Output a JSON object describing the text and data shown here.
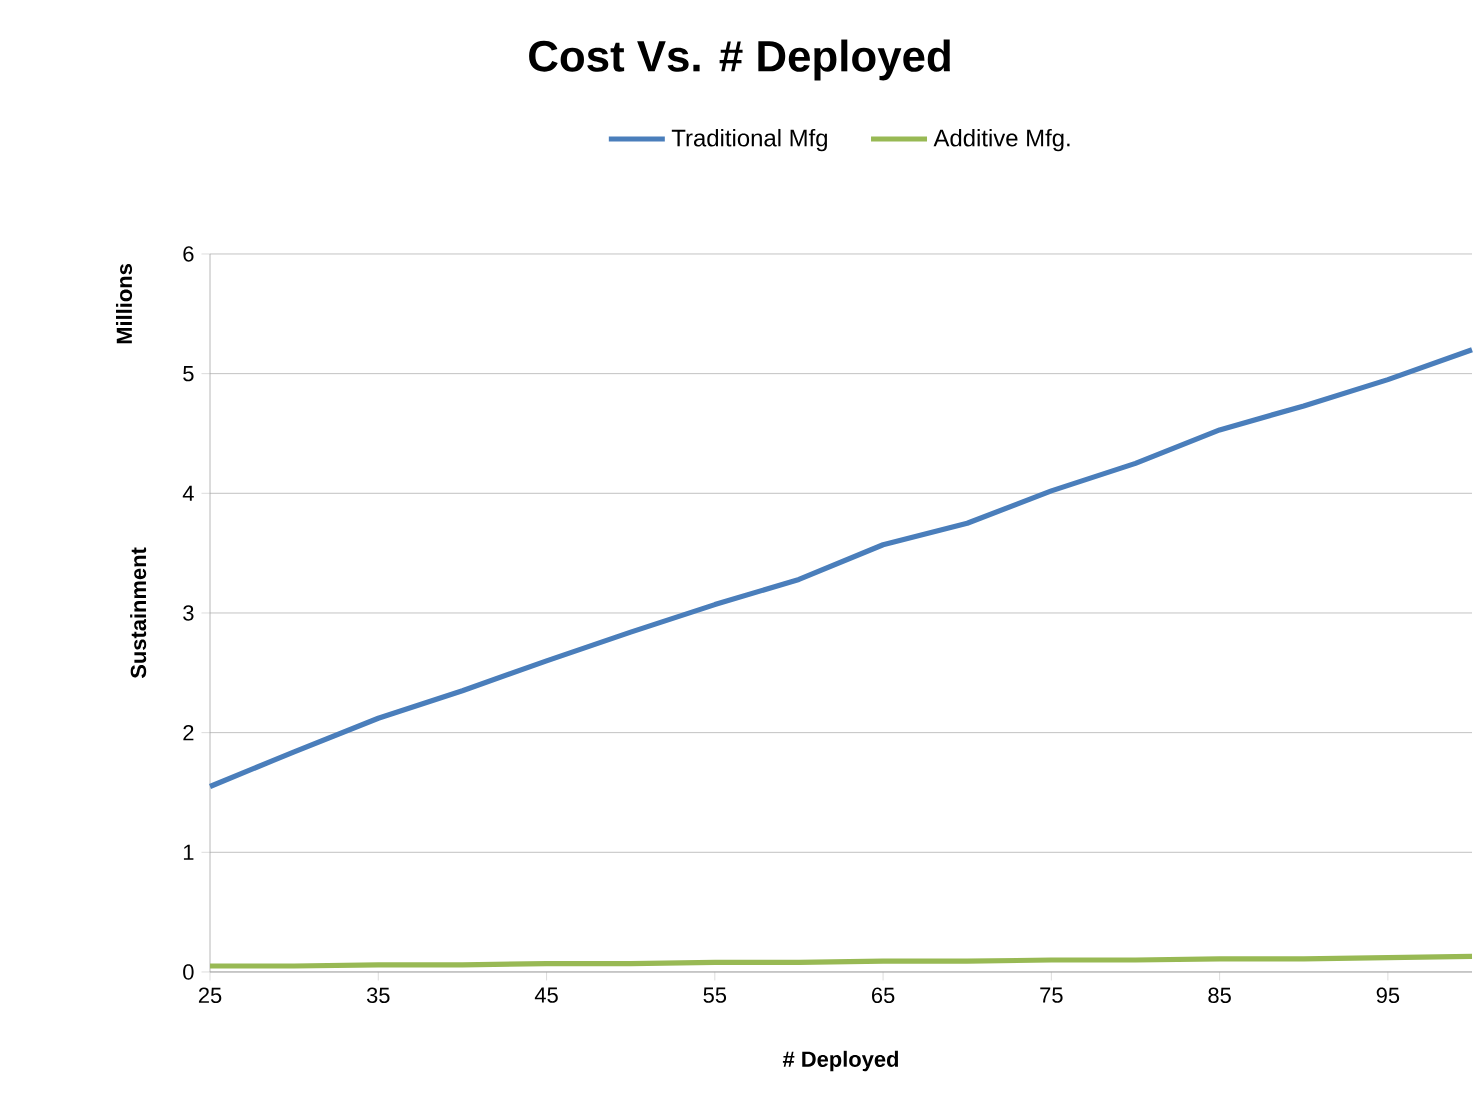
{
  "chart_data": {
    "type": "line",
    "title": "Cost Vs. # Deployed",
    "xlabel": "# Deployed",
    "ylabel": "Sustainment",
    "annotations": [
      "Millions"
    ],
    "x": [
      25,
      30,
      35,
      40,
      45,
      50,
      55,
      60,
      65,
      70,
      75,
      80,
      85,
      90,
      95,
      100
    ],
    "series": [
      {
        "name": "Traditional Mfg",
        "color": "#4a7ebb",
        "values": [
          1.55,
          1.84,
          2.12,
          2.35,
          2.6,
          2.84,
          3.07,
          3.28,
          3.57,
          3.75,
          4.02,
          4.25,
          4.53,
          4.73,
          4.95,
          5.2
        ]
      },
      {
        "name": "Additive Mfg.",
        "color": "#98b954",
        "values": [
          0.05,
          0.05,
          0.06,
          0.06,
          0.07,
          0.07,
          0.08,
          0.08,
          0.09,
          0.09,
          0.1,
          0.1,
          0.11,
          0.11,
          0.12,
          0.13
        ]
      }
    ],
    "xlim": [
      25,
      100
    ],
    "xticks": [
      25,
      35,
      45,
      55,
      65,
      75,
      85,
      95
    ],
    "ylim": [
      0,
      6
    ],
    "yticks": [
      0,
      1,
      2,
      3,
      4,
      5,
      6
    ],
    "grid": "y",
    "legend": "top",
    "marker": "none",
    "line_style": "solid"
  }
}
